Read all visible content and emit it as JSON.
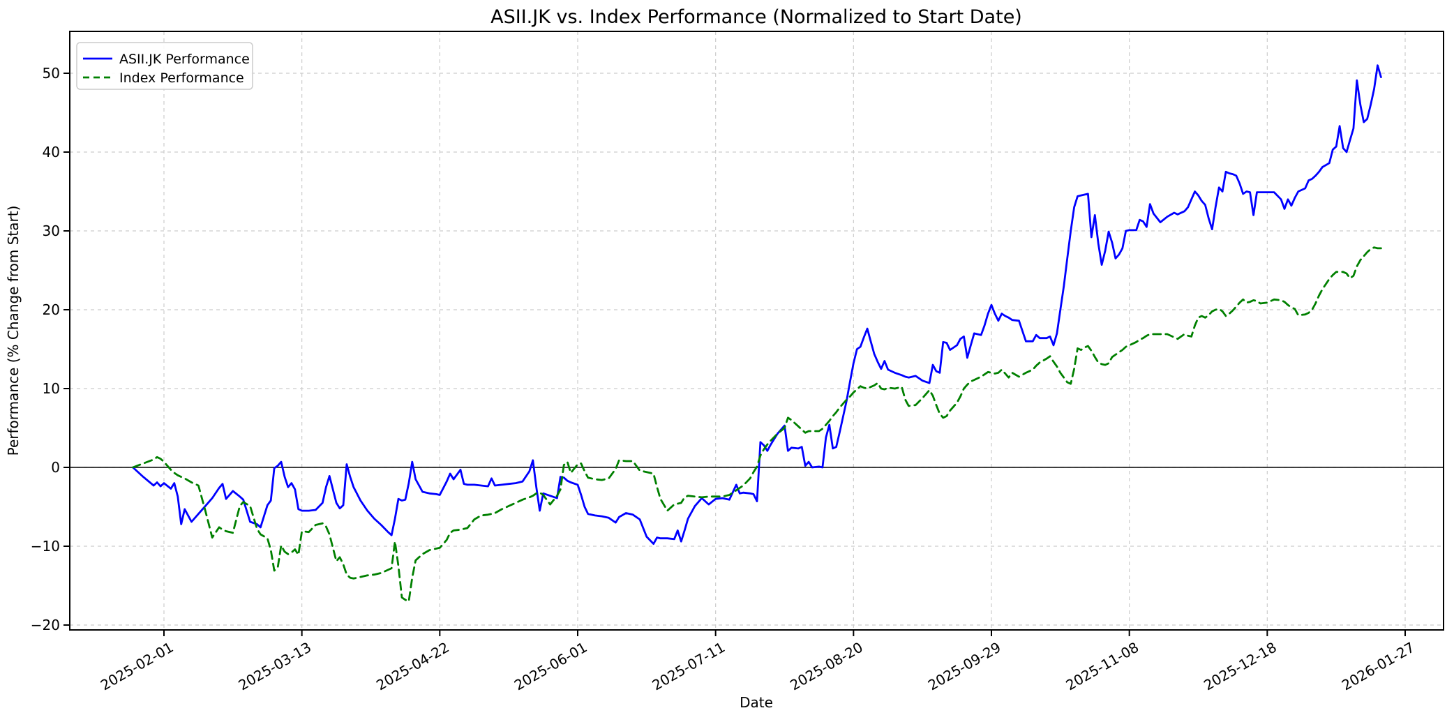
{
  "chart_data": {
    "type": "line",
    "title": "ASII.JK vs. Index Performance (Normalized to Start Date)",
    "xlabel": "Date",
    "ylabel": "Performance (% Change from Start)",
    "grid": true,
    "zero_line": true,
    "legend_position": "upper left",
    "ylim": [
      -20.8,
      55.3
    ],
    "y_ticks": [
      50,
      40,
      30,
      20,
      10,
      0,
      -10,
      -20
    ],
    "x_tick_labels": [
      "2025-02-01",
      "2025-03-13",
      "2025-04-22",
      "2025-06-01",
      "2025-07-11",
      "2025-08-20",
      "2025-09-29",
      "2025-11-08",
      "2025-12-18",
      "2026-01-27"
    ],
    "colors": {
      "asii": "#0000ff",
      "index": "#008000",
      "grid": "#cccccc",
      "axes": "#000000"
    },
    "legend": {
      "entries": [
        {
          "label": "ASII.JK Performance",
          "color": "#0000ff",
          "line_style": "solid"
        },
        {
          "label": "Index Performance",
          "color": "#008000",
          "line_style": "dashed"
        }
      ]
    },
    "series": [
      {
        "name": "ASII.JK Performance",
        "color": "#0000ff",
        "style": "solid"
      },
      {
        "name": "Index Performance",
        "color": "#008000",
        "style": "dashed"
      }
    ],
    "points": [
      [
        "2025-01-23",
        0.0,
        0.0
      ],
      [
        "2025-01-26",
        -1.2,
        0.5
      ],
      [
        "2025-01-29",
        -2.3,
        1.0
      ],
      [
        "2025-01-30",
        -1.9,
        1.3
      ],
      [
        "2025-01-31",
        -2.4,
        1.1
      ],
      [
        "2025-02-01",
        -2.0,
        0.7
      ],
      [
        "2025-02-03",
        -2.7,
        -0.3
      ],
      [
        "2025-02-04",
        -2.0,
        -0.7
      ],
      [
        "2025-02-05",
        -3.7,
        -1.0
      ],
      [
        "2025-02-06",
        -7.2,
        -1.2
      ],
      [
        "2025-02-07",
        -5.3,
        -1.4
      ],
      [
        "2025-02-09",
        -6.9,
        -1.9
      ],
      [
        "2025-02-11",
        -5.9,
        -2.3
      ],
      [
        "2025-02-13",
        -4.9,
        -5.5
      ],
      [
        "2025-02-15",
        -3.9,
        -8.9
      ],
      [
        "2025-02-17",
        -2.6,
        -7.6
      ],
      [
        "2025-02-18",
        -2.1,
        -7.9
      ],
      [
        "2025-02-19",
        -4.0,
        -8.1
      ],
      [
        "2025-02-21",
        -3.0,
        -8.3
      ],
      [
        "2025-02-23",
        -3.7,
        -4.9
      ],
      [
        "2025-02-24",
        -4.1,
        -4.4
      ],
      [
        "2025-02-26",
        -6.9,
        -4.9
      ],
      [
        "2025-02-28",
        -7.2,
        -7.8
      ],
      [
        "2025-03-01",
        -7.6,
        -8.5
      ],
      [
        "2025-03-03",
        -4.8,
        -9.0
      ],
      [
        "2025-03-04",
        -4.2,
        -10.5
      ],
      [
        "2025-03-05",
        -0.1,
        -13.1
      ],
      [
        "2025-03-06",
        0.2,
        -12.7
      ],
      [
        "2025-03-07",
        0.7,
        -9.9
      ],
      [
        "2025-03-08",
        -1.2,
        -10.7
      ],
      [
        "2025-03-09",
        -2.5,
        -11.0
      ],
      [
        "2025-03-10",
        -2.0,
        -10.8
      ],
      [
        "2025-03-11",
        -2.8,
        -10.4
      ],
      [
        "2025-03-12",
        -5.3,
        -11.1
      ],
      [
        "2025-03-13",
        -5.5,
        -8.1
      ],
      [
        "2025-03-15",
        -5.5,
        -8.2
      ],
      [
        "2025-03-17",
        -5.4,
        -7.3
      ],
      [
        "2025-03-19",
        -4.5,
        -7.1
      ],
      [
        "2025-03-20",
        -2.5,
        -7.5
      ],
      [
        "2025-03-21",
        -1.1,
        -8.5
      ],
      [
        "2025-03-23",
        -4.5,
        -11.9
      ],
      [
        "2025-03-24",
        -5.2,
        -11.4
      ],
      [
        "2025-03-25",
        -4.8,
        -12.3
      ],
      [
        "2025-03-26",
        0.4,
        -13.6
      ],
      [
        "2025-03-27",
        -1.2,
        -14.0
      ],
      [
        "2025-03-28",
        -2.5,
        -14.1
      ],
      [
        "2025-03-30",
        -4.2,
        -13.9
      ],
      [
        "2025-04-01",
        -5.5,
        -13.7
      ],
      [
        "2025-04-03",
        -6.5,
        -13.6
      ],
      [
        "2025-04-05",
        -7.3,
        -13.4
      ],
      [
        "2025-04-07",
        -8.2,
        -13.0
      ],
      [
        "2025-04-08",
        -8.6,
        -12.8
      ],
      [
        "2025-04-09",
        -6.5,
        -9.4
      ],
      [
        "2025-04-10",
        -4.0,
        -12.5
      ],
      [
        "2025-04-11",
        -4.2,
        -16.5
      ],
      [
        "2025-04-12",
        -4.1,
        -16.8
      ],
      [
        "2025-04-13",
        -2.0,
        -17.0
      ],
      [
        "2025-04-14",
        0.7,
        -14.0
      ],
      [
        "2025-04-15",
        -1.5,
        -11.8
      ],
      [
        "2025-04-17",
        -3.1,
        -11.0
      ],
      [
        "2025-04-19",
        -3.3,
        -10.5
      ],
      [
        "2025-04-21",
        -3.4,
        -10.3
      ],
      [
        "2025-04-22",
        -3.5,
        -10.2
      ],
      [
        "2025-04-24",
        -1.8,
        -9.2
      ],
      [
        "2025-04-25",
        -0.8,
        -8.3
      ],
      [
        "2025-04-26",
        -1.5,
        -8.0
      ],
      [
        "2025-04-28",
        -0.3,
        -7.9
      ],
      [
        "2025-04-29",
        -2.1,
        -7.8
      ],
      [
        "2025-04-30",
        -2.2,
        -7.7
      ],
      [
        "2025-05-02",
        -2.2,
        -6.6
      ],
      [
        "2025-05-04",
        -2.3,
        -6.1
      ],
      [
        "2025-05-06",
        -2.4,
        -6.0
      ],
      [
        "2025-05-07",
        -1.4,
        -5.9
      ],
      [
        "2025-05-08",
        -2.3,
        -5.8
      ],
      [
        "2025-05-10",
        -2.2,
        -5.3
      ],
      [
        "2025-05-12",
        -2.1,
        -4.9
      ],
      [
        "2025-05-14",
        -2.0,
        -4.5
      ],
      [
        "2025-05-16",
        -1.8,
        -4.1
      ],
      [
        "2025-05-18",
        -0.5,
        -3.8
      ],
      [
        "2025-05-19",
        0.9,
        -3.6
      ],
      [
        "2025-05-20",
        -2.5,
        -3.3
      ],
      [
        "2025-05-21",
        -5.5,
        -3.2
      ],
      [
        "2025-05-22",
        -3.3,
        -3.5
      ],
      [
        "2025-05-24",
        -3.6,
        -4.7
      ],
      [
        "2025-05-26",
        -3.9,
        -3.6
      ],
      [
        "2025-05-27",
        -1.2,
        -2.8
      ],
      [
        "2025-05-28",
        -1.3,
        0.3
      ],
      [
        "2025-05-29",
        -1.7,
        0.7
      ],
      [
        "2025-05-30",
        -1.9,
        -0.7
      ],
      [
        "2025-06-01",
        -2.2,
        0.4
      ],
      [
        "2025-06-02",
        -3.5,
        0.5
      ],
      [
        "2025-06-03",
        -5.0,
        -0.5
      ],
      [
        "2025-06-04",
        -5.9,
        -1.3
      ],
      [
        "2025-06-06",
        -6.1,
        -1.5
      ],
      [
        "2025-06-08",
        -6.2,
        -1.6
      ],
      [
        "2025-06-10",
        -6.4,
        -1.4
      ],
      [
        "2025-06-12",
        -7.0,
        -0.2
      ],
      [
        "2025-06-13",
        -6.3,
        0.9
      ],
      [
        "2025-06-15",
        -5.8,
        0.8
      ],
      [
        "2025-06-17",
        -6.0,
        0.8
      ],
      [
        "2025-06-19",
        -6.6,
        -0.4
      ],
      [
        "2025-06-21",
        -8.8,
        -0.6
      ],
      [
        "2025-06-23",
        -9.7,
        -0.8
      ],
      [
        "2025-06-24",
        -8.9,
        -2.5
      ],
      [
        "2025-06-25",
        -9.0,
        -4.0
      ],
      [
        "2025-06-27",
        -9.0,
        -5.5
      ],
      [
        "2025-06-29",
        -9.1,
        -4.7
      ],
      [
        "2025-06-30",
        -8.0,
        -4.6
      ],
      [
        "2025-07-01",
        -9.4,
        -4.5
      ],
      [
        "2025-07-02",
        -8.0,
        -3.8
      ],
      [
        "2025-07-03",
        -6.5,
        -3.6
      ],
      [
        "2025-07-05",
        -4.9,
        -3.7
      ],
      [
        "2025-07-07",
        -3.9,
        -3.8
      ],
      [
        "2025-07-09",
        -4.7,
        -3.7
      ],
      [
        "2025-07-11",
        -4.0,
        -3.7
      ],
      [
        "2025-07-13",
        -3.9,
        -3.7
      ],
      [
        "2025-07-15",
        -4.1,
        -3.5
      ],
      [
        "2025-07-17",
        -2.2,
        -2.9
      ],
      [
        "2025-07-18",
        -3.3,
        -2.6
      ],
      [
        "2025-07-19",
        -3.2,
        -2.3
      ],
      [
        "2025-07-21",
        -3.3,
        -1.4
      ],
      [
        "2025-07-22",
        -3.4,
        -0.6
      ],
      [
        "2025-07-23",
        -4.3,
        0.1
      ],
      [
        "2025-07-24",
        3.2,
        1.5
      ],
      [
        "2025-07-25",
        2.8,
        2.3
      ],
      [
        "2025-07-26",
        2.1,
        2.9
      ],
      [
        "2025-07-27",
        2.9,
        3.4
      ],
      [
        "2025-07-29",
        4.3,
        4.3
      ],
      [
        "2025-07-31",
        5.3,
        5.0
      ],
      [
        "2025-08-01",
        2.1,
        6.3
      ],
      [
        "2025-08-02",
        2.5,
        6.0
      ],
      [
        "2025-08-04",
        2.4,
        5.2
      ],
      [
        "2025-08-05",
        2.6,
        4.8
      ],
      [
        "2025-08-06",
        0.2,
        4.4
      ],
      [
        "2025-08-07",
        0.7,
        4.6
      ],
      [
        "2025-08-08",
        0.0,
        4.6
      ],
      [
        "2025-08-10",
        0.1,
        4.6
      ],
      [
        "2025-08-11",
        0.0,
        4.9
      ],
      [
        "2025-08-12",
        3.8,
        5.4
      ],
      [
        "2025-08-13",
        5.4,
        5.9
      ],
      [
        "2025-08-14",
        2.4,
        6.5
      ],
      [
        "2025-08-15",
        2.6,
        7.0
      ],
      [
        "2025-08-16",
        4.5,
        7.6
      ],
      [
        "2025-08-18",
        8.5,
        8.6
      ],
      [
        "2025-08-19",
        10.9,
        9.0
      ],
      [
        "2025-08-20",
        13.2,
        9.5
      ],
      [
        "2025-08-21",
        15.0,
        9.9
      ],
      [
        "2025-08-22",
        15.3,
        10.3
      ],
      [
        "2025-08-23",
        16.5,
        10.1
      ],
      [
        "2025-08-24",
        17.6,
        10.0
      ],
      [
        "2025-08-25",
        16.0,
        10.2
      ],
      [
        "2025-08-26",
        14.4,
        10.4
      ],
      [
        "2025-08-27",
        13.4,
        10.7
      ],
      [
        "2025-08-28",
        12.5,
        10.0
      ],
      [
        "2025-08-29",
        13.5,
        9.9
      ],
      [
        "2025-08-30",
        12.4,
        10.1
      ],
      [
        "2025-09-01",
        12.0,
        10.0
      ],
      [
        "2025-09-03",
        11.7,
        10.2
      ],
      [
        "2025-09-04",
        11.5,
        8.6
      ],
      [
        "2025-09-05",
        11.4,
        7.8
      ],
      [
        "2025-09-07",
        11.6,
        7.9
      ],
      [
        "2025-09-09",
        11.0,
        8.8
      ],
      [
        "2025-09-11",
        10.7,
        9.8
      ],
      [
        "2025-09-12",
        13.0,
        9.1
      ],
      [
        "2025-09-13",
        12.2,
        7.9
      ],
      [
        "2025-09-14",
        12.0,
        6.8
      ],
      [
        "2025-09-15",
        15.9,
        6.3
      ],
      [
        "2025-09-16",
        15.8,
        6.5
      ],
      [
        "2025-09-17",
        14.9,
        7.2
      ],
      [
        "2025-09-19",
        15.5,
        8.2
      ],
      [
        "2025-09-20",
        16.3,
        9.0
      ],
      [
        "2025-09-21",
        16.6,
        10.0
      ],
      [
        "2025-09-22",
        13.9,
        10.5
      ],
      [
        "2025-09-23",
        15.5,
        10.9
      ],
      [
        "2025-09-24",
        17.0,
        11.1
      ],
      [
        "2025-09-26",
        16.8,
        11.5
      ],
      [
        "2025-09-27",
        18.0,
        11.8
      ],
      [
        "2025-09-28",
        19.5,
        12.1
      ],
      [
        "2025-09-29",
        20.6,
        12.0
      ],
      [
        "2025-09-30",
        19.5,
        11.9
      ],
      [
        "2025-10-01",
        18.6,
        12.0
      ],
      [
        "2025-10-02",
        19.5,
        12.4
      ],
      [
        "2025-10-03",
        19.2,
        11.9
      ],
      [
        "2025-10-04",
        19.0,
        11.4
      ],
      [
        "2025-10-05",
        18.7,
        12.0
      ],
      [
        "2025-10-07",
        18.6,
        11.5
      ],
      [
        "2025-10-09",
        16.0,
        12.0
      ],
      [
        "2025-10-11",
        16.0,
        12.4
      ],
      [
        "2025-10-12",
        16.8,
        12.9
      ],
      [
        "2025-10-13",
        16.4,
        13.3
      ],
      [
        "2025-10-15",
        16.4,
        13.8
      ],
      [
        "2025-10-16",
        16.6,
        14.1
      ],
      [
        "2025-10-17",
        15.5,
        13.4
      ],
      [
        "2025-10-18",
        17.0,
        12.8
      ],
      [
        "2025-10-19",
        20.0,
        12.0
      ],
      [
        "2025-10-20",
        23.0,
        11.4
      ],
      [
        "2025-10-21",
        26.5,
        10.8
      ],
      [
        "2025-10-22",
        30.0,
        10.6
      ],
      [
        "2025-10-23",
        33.0,
        12.5
      ],
      [
        "2025-10-24",
        34.4,
        15.1
      ],
      [
        "2025-10-25",
        34.5,
        14.9
      ],
      [
        "2025-10-26",
        34.6,
        15.2
      ],
      [
        "2025-10-27",
        34.7,
        15.4
      ],
      [
        "2025-10-28",
        29.2,
        14.8
      ],
      [
        "2025-10-29",
        32.0,
        14.0
      ],
      [
        "2025-10-30",
        28.4,
        13.3
      ],
      [
        "2025-10-31",
        25.7,
        13.1
      ],
      [
        "2025-11-01",
        27.5,
        13.0
      ],
      [
        "2025-11-02",
        29.9,
        13.2
      ],
      [
        "2025-11-03",
        28.5,
        14.0
      ],
      [
        "2025-11-04",
        26.5,
        14.3
      ],
      [
        "2025-11-05",
        27.0,
        14.6
      ],
      [
        "2025-11-06",
        27.8,
        14.9
      ],
      [
        "2025-11-07",
        30.0,
        15.3
      ],
      [
        "2025-11-08",
        30.1,
        15.5
      ],
      [
        "2025-11-10",
        30.1,
        15.9
      ],
      [
        "2025-11-11",
        31.4,
        16.2
      ],
      [
        "2025-11-12",
        31.2,
        16.4
      ],
      [
        "2025-11-13",
        30.5,
        16.7
      ],
      [
        "2025-11-14",
        33.4,
        16.9
      ],
      [
        "2025-11-15",
        32.2,
        16.9
      ],
      [
        "2025-11-17",
        31.1,
        16.9
      ],
      [
        "2025-11-19",
        31.8,
        16.9
      ],
      [
        "2025-11-21",
        32.3,
        16.5
      ],
      [
        "2025-11-22",
        32.1,
        16.3
      ],
      [
        "2025-11-24",
        32.5,
        16.9
      ],
      [
        "2025-11-25",
        33.0,
        16.7
      ],
      [
        "2025-11-26",
        34.0,
        16.6
      ],
      [
        "2025-11-27",
        35.0,
        18.0
      ],
      [
        "2025-11-28",
        34.5,
        19.0
      ],
      [
        "2025-11-29",
        33.8,
        19.2
      ],
      [
        "2025-11-30",
        33.3,
        19.0
      ],
      [
        "2025-12-01",
        31.6,
        19.3
      ],
      [
        "2025-12-02",
        30.2,
        19.8
      ],
      [
        "2025-12-03",
        33.0,
        20.0
      ],
      [
        "2025-12-04",
        35.5,
        20.1
      ],
      [
        "2025-12-05",
        35.0,
        19.8
      ],
      [
        "2025-12-06",
        37.5,
        19.2
      ],
      [
        "2025-12-07",
        37.3,
        19.5
      ],
      [
        "2025-12-08",
        37.2,
        19.9
      ],
      [
        "2025-12-09",
        37.0,
        20.4
      ],
      [
        "2025-12-10",
        36.0,
        20.9
      ],
      [
        "2025-12-11",
        34.7,
        21.3
      ],
      [
        "2025-12-12",
        35.0,
        20.9
      ],
      [
        "2025-12-13",
        34.9,
        21.0
      ],
      [
        "2025-12-14",
        32.0,
        21.2
      ],
      [
        "2025-12-15",
        34.9,
        21.1
      ],
      [
        "2025-12-16",
        34.9,
        20.8
      ],
      [
        "2025-12-18",
        34.9,
        20.9
      ],
      [
        "2025-12-20",
        34.9,
        21.3
      ],
      [
        "2025-12-22",
        34.0,
        21.2
      ],
      [
        "2025-12-23",
        32.8,
        21.0
      ],
      [
        "2025-12-24",
        34.0,
        20.6
      ],
      [
        "2025-12-25",
        33.2,
        20.3
      ],
      [
        "2025-12-26",
        34.2,
        20.1
      ],
      [
        "2025-12-27",
        35.0,
        19.3
      ],
      [
        "2025-12-29",
        35.4,
        19.4
      ],
      [
        "2025-12-30",
        36.4,
        19.6
      ],
      [
        "2025-12-31",
        36.6,
        20.0
      ],
      [
        "2026-01-01",
        37.0,
        20.8
      ],
      [
        "2026-01-02",
        37.5,
        21.8
      ],
      [
        "2026-01-03",
        38.1,
        22.6
      ],
      [
        "2026-01-05",
        38.6,
        23.9
      ],
      [
        "2026-01-06",
        40.3,
        24.4
      ],
      [
        "2026-01-07",
        40.7,
        24.8
      ],
      [
        "2026-01-08",
        43.3,
        24.8
      ],
      [
        "2026-01-09",
        40.5,
        24.8
      ],
      [
        "2026-01-10",
        40.0,
        24.6
      ],
      [
        "2026-01-11",
        41.5,
        24.0
      ],
      [
        "2026-01-12",
        43.0,
        24.3
      ],
      [
        "2026-01-13",
        49.1,
        25.5
      ],
      [
        "2026-01-14",
        46.0,
        26.3
      ],
      [
        "2026-01-15",
        43.8,
        26.8
      ],
      [
        "2026-01-16",
        44.2,
        27.3
      ],
      [
        "2026-01-17",
        46.0,
        27.7
      ],
      [
        "2026-01-18",
        48.0,
        27.9
      ],
      [
        "2026-01-19",
        51.0,
        27.8
      ],
      [
        "2026-01-20",
        49.5,
        27.8
      ]
    ]
  }
}
